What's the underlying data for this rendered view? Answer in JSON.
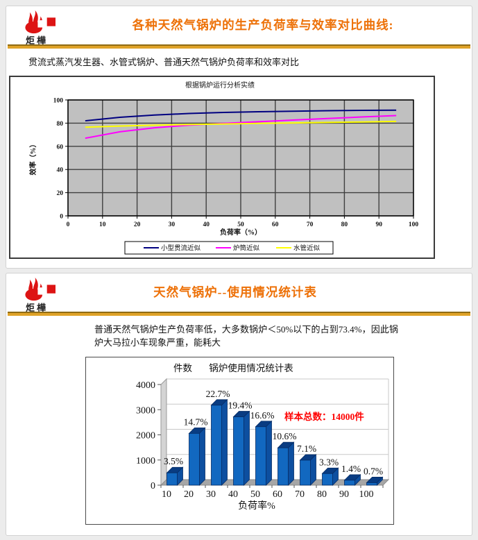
{
  "slide1": {
    "logo_text": "炬樺",
    "title": "各种天然气锅炉的生产负荷率与效率对比曲线:",
    "subtitle": "贯流式蒸汽发生器、水管式锅炉、普通天然气锅炉负荷率和效率对比"
  },
  "slide2": {
    "logo_text": "炬樺",
    "title": "天然气锅炉--使用情况统计表",
    "body": "普通天然气锅炉生产负荷率低，大多数锅炉＜50%以下的占到73.4%，因此锅炉大马拉小车现象严重，能耗大"
  },
  "colors": {
    "title_orange": "#ed7108",
    "gold_rule": "#dfa228",
    "logo_red": "#dd1414",
    "annotation_red": "#ff0000"
  },
  "chart_data": [
    {
      "type": "line",
      "title": "根据锅炉运行分析实绩",
      "xlabel": "负荷率（%）",
      "ylabel": "效率（%）",
      "xlim": [
        0,
        100
      ],
      "ylim": [
        0,
        100
      ],
      "xticks": [
        0,
        10,
        20,
        30,
        40,
        50,
        60,
        70,
        80,
        90,
        100
      ],
      "yticks": [
        0,
        20,
        40,
        60,
        80,
        100
      ],
      "grid": true,
      "plot_bg": "#c0c0c0",
      "grid_color": "#3f3f3f",
      "legend_position": "bottom",
      "x": [
        5,
        15,
        25,
        35,
        45,
        55,
        65,
        75,
        85,
        95
      ],
      "series": [
        {
          "name": "小型贯流近似",
          "color": "#000080",
          "values": [
            82,
            85,
            87,
            88.3,
            89.2,
            89.8,
            90.3,
            90.7,
            91,
            91.2
          ]
        },
        {
          "name": "炉筒近似",
          "color": "#ff00ff",
          "values": [
            67,
            72.5,
            76,
            78.2,
            79.8,
            81.2,
            82.6,
            84,
            85.3,
            86.5
          ]
        },
        {
          "name": "水管近似",
          "color": "#ffff00",
          "values": [
            76.5,
            77.5,
            78.2,
            78.8,
            79.3,
            79.8,
            80.2,
            80.6,
            81,
            81.5
          ]
        }
      ]
    },
    {
      "type": "bar",
      "title": "锅炉使用情况统计表",
      "xlabel": "负荷率%",
      "ylabel": "件数",
      "categories": [
        "10",
        "20",
        "30",
        "40",
        "50",
        "60",
        "70",
        "80",
        "90",
        "100"
      ],
      "values": [
        490,
        2058,
        3178,
        2716,
        2324,
        1484,
        994,
        462,
        196,
        98
      ],
      "bar_labels": [
        "3.5%",
        "14.7%",
        "22.7%",
        "19.4%",
        "16.6%",
        "10.6%",
        "7.1%",
        "3.3%",
        "1.4%",
        "0.7%"
      ],
      "annotation": "样本总数：14000件",
      "annotation_color": "#ff0000",
      "ylim": [
        0,
        4000
      ],
      "yticks": [
        0,
        1000,
        2000,
        3000,
        4000
      ],
      "grid": true,
      "grid_color": "#c8c8c8",
      "bar_front_color": "#1268c0",
      "bar_side_color": "#0d4fa0",
      "bar_top_color": "#093c82",
      "wall_color": "#d4d4d4",
      "floor_color": "#a6a6a6"
    }
  ]
}
